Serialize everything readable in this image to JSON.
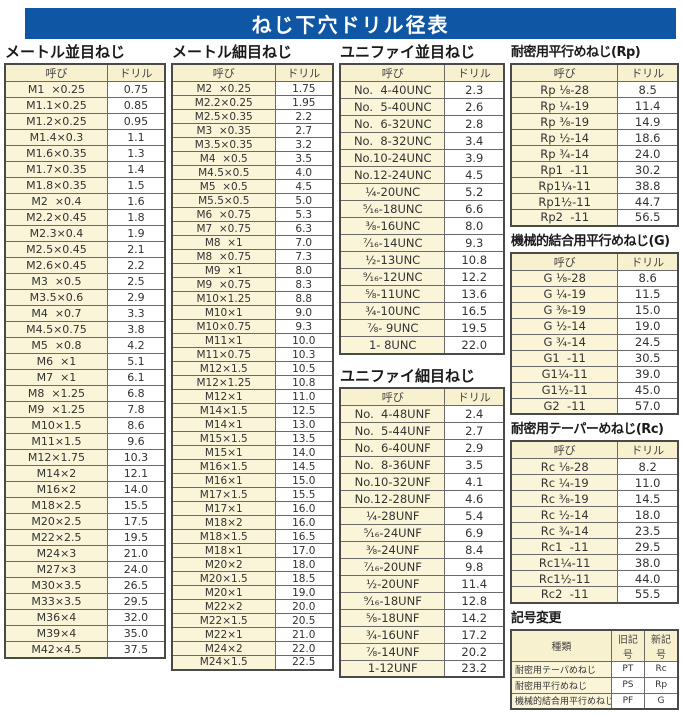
{
  "page_title": "ねじ下穴ドリル径表",
  "colors": {
    "banner_bg": "#0f57a4",
    "banner_text": "#ffffff",
    "cell_cream_bg": "#faf4d8",
    "header_cream_bg": "#f8f1d0",
    "border": "#4a4a48"
  },
  "tables": {
    "metric_coarse": {
      "title": "メートル並目ねじ",
      "headers": [
        "呼び",
        "ドリル"
      ],
      "rows": [
        [
          "M1  ×0.25",
          "0.75"
        ],
        [
          "M1.1×0.25",
          "0.85"
        ],
        [
          "M1.2×0.25",
          "0.95"
        ],
        [
          "M1.4×0.3",
          "1.1"
        ],
        [
          "M1.6×0.35",
          "1.3"
        ],
        [
          "M1.7×0.35",
          "1.4"
        ],
        [
          "M1.8×0.35",
          "1.5"
        ],
        [
          "M2  ×0.4",
          "1.6"
        ],
        [
          "M2.2×0.45",
          "1.8"
        ],
        [
          "M2.3×0.4",
          "1.9"
        ],
        [
          "M2.5×0.45",
          "2.1"
        ],
        [
          "M2.6×0.45",
          "2.2"
        ],
        [
          "M3  ×0.5",
          "2.5"
        ],
        [
          "M3.5×0.6",
          "2.9"
        ],
        [
          "M4  ×0.7",
          "3.3"
        ],
        [
          "M4.5×0.75",
          "3.8"
        ],
        [
          "M5  ×0.8",
          "4.2"
        ],
        [
          "M6  ×1",
          "5.1"
        ],
        [
          "M7  ×1",
          "6.1"
        ],
        [
          "M8  ×1.25",
          "6.8"
        ],
        [
          "M9  ×1.25",
          "7.8"
        ],
        [
          "M10×1.5",
          "8.6"
        ],
        [
          "M11×1.5",
          "9.6"
        ],
        [
          "M12×1.75",
          "10.3"
        ],
        [
          "M14×2",
          "12.1"
        ],
        [
          "M16×2",
          "14.0"
        ],
        [
          "M18×2.5",
          "15.5"
        ],
        [
          "M20×2.5",
          "17.5"
        ],
        [
          "M22×2.5",
          "19.5"
        ],
        [
          "M24×3",
          "21.0"
        ],
        [
          "M27×3",
          "24.0"
        ],
        [
          "M30×3.5",
          "26.5"
        ],
        [
          "M33×3.5",
          "29.5"
        ],
        [
          "M36×4",
          "32.0"
        ],
        [
          "M39×4",
          "35.0"
        ],
        [
          "M42×4.5",
          "37.5"
        ]
      ]
    },
    "metric_fine": {
      "title": "メートル細目ねじ",
      "headers": [
        "呼び",
        "ドリル"
      ],
      "rows": [
        [
          "M2  ×0.25",
          "1.75"
        ],
        [
          "M2.2×0.25",
          "1.95"
        ],
        [
          "M2.5×0.35",
          "2.2"
        ],
        [
          "M3  ×0.35",
          "2.7"
        ],
        [
          "M3.5×0.35",
          "3.2"
        ],
        [
          "M4  ×0.5",
          "3.5"
        ],
        [
          "M4.5×0.5",
          "4.0"
        ],
        [
          "M5  ×0.5",
          "4.5"
        ],
        [
          "M5.5×0.5",
          "5.0"
        ],
        [
          "M6  ×0.75",
          "5.3"
        ],
        [
          "M7  ×0.75",
          "6.3"
        ],
        [
          "M8  ×1",
          "7.0"
        ],
        [
          "M8  ×0.75",
          "7.3"
        ],
        [
          "M9  ×1",
          "8.0"
        ],
        [
          "M9  ×0.75",
          "8.3"
        ],
        [
          "M10×1.25",
          "8.8"
        ],
        [
          "M10×1",
          "9.0"
        ],
        [
          "M10×0.75",
          "9.3"
        ],
        [
          "M11×1",
          "10.0"
        ],
        [
          "M11×0.75",
          "10.3"
        ],
        [
          "M12×1.5",
          "10.5"
        ],
        [
          "M12×1.25",
          "10.8"
        ],
        [
          "M12×1",
          "11.0"
        ],
        [
          "M14×1.5",
          "12.5"
        ],
        [
          "M14×1",
          "13.0"
        ],
        [
          "M15×1.5",
          "13.5"
        ],
        [
          "M15×1",
          "14.0"
        ],
        [
          "M16×1.5",
          "14.5"
        ],
        [
          "M16×1",
          "15.0"
        ],
        [
          "M17×1.5",
          "15.5"
        ],
        [
          "M17×1",
          "16.0"
        ],
        [
          "M18×2",
          "16.0"
        ],
        [
          "M18×1.5",
          "16.5"
        ],
        [
          "M18×1",
          "17.0"
        ],
        [
          "M20×2",
          "18.0"
        ],
        [
          "M20×1.5",
          "18.5"
        ],
        [
          "M20×1",
          "19.0"
        ],
        [
          "M22×2",
          "20.0"
        ],
        [
          "M22×1.5",
          "20.5"
        ],
        [
          "M22×1",
          "21.0"
        ],
        [
          "M24×2",
          "22.0"
        ],
        [
          "M24×1.5",
          "22.5"
        ]
      ]
    },
    "unified_coarse": {
      "title": "ユニファイ並目ねじ",
      "headers": [
        "呼び",
        "ドリル"
      ],
      "rows": [
        [
          "No.  4-40UNC",
          "2.3"
        ],
        [
          "No.  5-40UNC",
          "2.6"
        ],
        [
          "No.  6-32UNC",
          "2.8"
        ],
        [
          "No.  8-32UNC",
          "3.4"
        ],
        [
          "No.10-24UNC",
          "3.9"
        ],
        [
          "No.12-24UNC",
          "4.5"
        ],
        [
          "¼-20UNC",
          "5.2"
        ],
        [
          "⁵⁄₁₆-18UNC",
          "6.6"
        ],
        [
          "⅜-16UNC",
          "8.0"
        ],
        [
          "⁷⁄₁₆-14UNC",
          "9.3"
        ],
        [
          "½-13UNC",
          "10.8"
        ],
        [
          "⁹⁄₁₆-12UNC",
          "12.2"
        ],
        [
          "⅝-11UNC",
          "13.6"
        ],
        [
          "¾-10UNC",
          "16.5"
        ],
        [
          "⅞- 9UNC",
          "19.5"
        ],
        [
          "1- 8UNC",
          "22.0"
        ]
      ]
    },
    "unified_fine": {
      "title": "ユニファイ細目ねじ",
      "headers": [
        "呼び",
        "ドリル"
      ],
      "rows": [
        [
          "No.  4-48UNF",
          "2.4"
        ],
        [
          "No.  5-44UNF",
          "2.7"
        ],
        [
          "No.  6-40UNF",
          "2.9"
        ],
        [
          "No.  8-36UNF",
          "3.5"
        ],
        [
          "No.10-32UNF",
          "4.1"
        ],
        [
          "No.12-28UNF",
          "4.6"
        ],
        [
          "¼-28UNF",
          "5.4"
        ],
        [
          "⁵⁄₁₆-24UNF",
          "6.9"
        ],
        [
          "⅜-24UNF",
          "8.4"
        ],
        [
          "⁷⁄₁₆-20UNF",
          "9.8"
        ],
        [
          "½-20UNF",
          "11.4"
        ],
        [
          "⁹⁄₁₆-18UNF",
          "12.8"
        ],
        [
          "⅝-18UNF",
          "14.2"
        ],
        [
          "¾-16UNF",
          "17.2"
        ],
        [
          "⅞-14UNF",
          "20.2"
        ],
        [
          "1-12UNF",
          "23.2"
        ]
      ]
    },
    "rp_parallel": {
      "title": "耐密用平行めねじ(Rp)",
      "headers": [
        "呼び",
        "ドリル"
      ],
      "rows": [
        [
          "Rp ⅛-28",
          "8.5"
        ],
        [
          "Rp ¼-19",
          "11.4"
        ],
        [
          "Rp ⅜-19",
          "14.9"
        ],
        [
          "Rp ½-14",
          "18.6"
        ],
        [
          "Rp ¾-14",
          "24.0"
        ],
        [
          "Rp1  -11",
          "30.2"
        ],
        [
          "Rp1¼-11",
          "38.8"
        ],
        [
          "Rp1½-11",
          "44.7"
        ],
        [
          "Rp2  -11",
          "56.5"
        ]
      ]
    },
    "g_parallel": {
      "title": "機械的結合用平行めねじ(G)",
      "headers": [
        "呼び",
        "ドリル"
      ],
      "rows": [
        [
          "G ⅛-28",
          "8.6"
        ],
        [
          "G ¼-19",
          "11.5"
        ],
        [
          "G ⅜-19",
          "15.0"
        ],
        [
          "G ½-14",
          "19.0"
        ],
        [
          "G ¾-14",
          "24.5"
        ],
        [
          "G1  -11",
          "30.5"
        ],
        [
          "G1¼-11",
          "39.0"
        ],
        [
          "G1½-11",
          "45.0"
        ],
        [
          "G2  -11",
          "57.0"
        ]
      ]
    },
    "rc_taper": {
      "title": "耐密用テーパーめねじ(Rc)",
      "headers": [
        "呼び",
        "ドリル"
      ],
      "rows": [
        [
          "Rc ⅛-28",
          "8.2"
        ],
        [
          "Rc ¼-19",
          "11.0"
        ],
        [
          "Rc ⅜-19",
          "14.5"
        ],
        [
          "Rc ½-14",
          "18.0"
        ],
        [
          "Rc ¾-14",
          "23.5"
        ],
        [
          "Rc1  -11",
          "29.5"
        ],
        [
          "Rc1¼-11",
          "38.0"
        ],
        [
          "Rc1½-11",
          "44.0"
        ],
        [
          "Rc2  -11",
          "55.5"
        ]
      ]
    },
    "symbol_change": {
      "title": "記号変更",
      "headers": [
        "種類",
        "旧記号",
        "新記号"
      ],
      "rows": [
        [
          "耐密用テーパめねじ",
          "PT",
          "Rc"
        ],
        [
          "耐密用平行めねじ",
          "PS",
          "Rp"
        ],
        [
          "機械的結合用平行めねじ",
          "PF",
          "G"
        ]
      ]
    }
  }
}
